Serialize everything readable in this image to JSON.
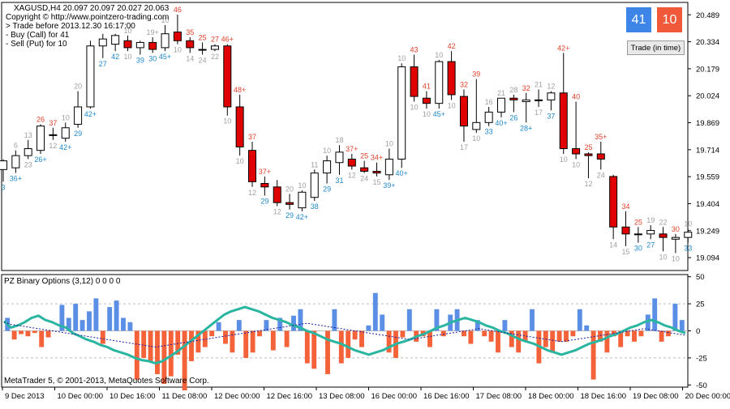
{
  "header": {
    "symbol_line": "XAGUSD,H4  20.097 20.097 20.027 20.063",
    "copyright": "Copyright © http://www.pointzero-trading.com",
    "trade_before": "> Trade before 2013.12.30 16:17:00",
    "buy_line": "- Buy (Call) for 41",
    "sell_line": "- Sell (Put) for 10"
  },
  "buttons": {
    "call_value": "41",
    "put_value": "10",
    "trade_label": "Trade (in time)",
    "call_color": "#3d86e8",
    "put_color": "#f05a3a"
  },
  "indicator": {
    "title": "PZ Binary Options (3,12) 0 0 0 0",
    "footer": "MetaTrader 5, © 2001-2013, MetaQuotes Software Corp."
  },
  "colors": {
    "bull_body": "#ffffff",
    "bear_body": "#e00000",
    "wick": "#000000",
    "label_red": "#e0402a",
    "label_blue": "#1e88c8",
    "label_gray": "#a0a0a0",
    "hist_pos": "#5b8fe6",
    "hist_neg": "#f4623a",
    "teal_line": "#2ab5a0",
    "signal_line": "#1a1aa0"
  },
  "chart_data": [
    {
      "type": "candlestick",
      "symbol": "XAGUSD",
      "timeframe": "H4",
      "ylim": [
        19.02,
        20.56
      ],
      "y_ticks": [
        "20.489",
        "20.334",
        "20.179",
        "20.024",
        "19.869",
        "19.714",
        "19.559",
        "19.404",
        "19.249",
        "19.094"
      ],
      "y_tick_values": [
        20.489,
        20.334,
        20.179,
        20.024,
        19.869,
        19.714,
        19.559,
        19.404,
        19.249,
        19.094
      ],
      "x_ticks": [
        "9 Dec 2013",
        "10 Dec 00:00",
        "10 Dec 16:00",
        "11 Dec 08:00",
        "12 Dec 00:00",
        "12 Dec 16:00",
        "13 Dec 08:00",
        "16 Dec 00:00",
        "16 Dec 16:00",
        "17 Dec 08:00",
        "18 Dec 00:00",
        "18 Dec 16:00",
        "19 Dec 08:00",
        "20 Dec 00:00"
      ],
      "candles": [
        {
          "o": 19.6,
          "h": 19.66,
          "l": 19.53,
          "c": 19.65,
          "ah": "",
          "ahc": "gray",
          "bl": "3",
          "blc": "blue"
        },
        {
          "o": 19.61,
          "h": 19.71,
          "l": 19.58,
          "c": 19.68,
          "ah": "6",
          "ahc": "gray",
          "bl": "36+",
          "blc": "blue"
        },
        {
          "o": 19.68,
          "h": 19.77,
          "l": 19.66,
          "c": 19.72,
          "ah": "13",
          "ahc": "gray",
          "bl": "23",
          "blc": "gray"
        },
        {
          "o": 19.71,
          "h": 19.86,
          "l": 19.69,
          "c": 19.85,
          "ah": "26",
          "ahc": "red",
          "bl": "26+",
          "blc": "blue"
        },
        {
          "o": 19.8,
          "h": 19.84,
          "l": 19.77,
          "c": 19.8,
          "ah": "37",
          "ahc": "red",
          "bl": "12",
          "blc": "gray"
        },
        {
          "o": 19.78,
          "h": 19.87,
          "l": 19.76,
          "c": 19.84,
          "ah": "10",
          "ahc": "gray",
          "bl": "42+",
          "blc": "blue"
        },
        {
          "o": 19.86,
          "h": 20.05,
          "l": 19.84,
          "c": 19.96,
          "ah": "20",
          "ahc": "gray",
          "bl": "29",
          "blc": "blue"
        },
        {
          "o": 19.96,
          "h": 20.34,
          "l": 19.95,
          "c": 20.31,
          "ah": "",
          "ahc": "gray",
          "bl": "42+",
          "blc": "blue"
        },
        {
          "o": 20.31,
          "h": 20.38,
          "l": 20.24,
          "c": 20.35,
          "ah": "",
          "ahc": "gray",
          "bl": "27",
          "blc": "blue"
        },
        {
          "o": 20.32,
          "h": 20.38,
          "l": 20.28,
          "c": 20.37,
          "ah": "",
          "ahc": "gray",
          "bl": "42",
          "blc": "blue"
        },
        {
          "o": 20.34,
          "h": 20.37,
          "l": 20.28,
          "c": 20.3,
          "ah": "10",
          "ahc": "gray",
          "bl": "10",
          "blc": "gray"
        },
        {
          "o": 20.3,
          "h": 20.34,
          "l": 20.26,
          "c": 20.33,
          "ah": "",
          "ahc": "gray",
          "bl": "39",
          "blc": "blue"
        },
        {
          "o": 20.33,
          "h": 20.36,
          "l": 20.27,
          "c": 20.29,
          "ah": "19+",
          "ahc": "gray",
          "bl": "30",
          "blc": "blue"
        },
        {
          "o": 20.3,
          "h": 20.43,
          "l": 20.28,
          "c": 20.38,
          "ah": "10",
          "ahc": "gray",
          "bl": "45+",
          "blc": "blue"
        },
        {
          "o": 20.39,
          "h": 20.49,
          "l": 20.32,
          "c": 20.34,
          "ah": "46",
          "ahc": "red",
          "bl": "10",
          "blc": "gray"
        },
        {
          "o": 20.34,
          "h": 20.36,
          "l": 20.27,
          "c": 20.3,
          "ah": "35",
          "ahc": "red",
          "bl": "14",
          "blc": "gray"
        },
        {
          "o": 20.29,
          "h": 20.33,
          "l": 20.26,
          "c": 20.29,
          "ah": "25",
          "ahc": "red",
          "bl": "24",
          "blc": "gray"
        },
        {
          "o": 20.29,
          "h": 20.32,
          "l": 20.28,
          "c": 20.31,
          "ah": "27",
          "ahc": "red",
          "bl": "22",
          "blc": "gray"
        },
        {
          "o": 20.31,
          "h": 20.32,
          "l": 19.91,
          "c": 19.96,
          "ah": "46+",
          "ahc": "red",
          "bl": "10",
          "blc": "gray"
        },
        {
          "o": 19.96,
          "h": 20.03,
          "l": 19.68,
          "c": 19.73,
          "ah": "48+",
          "ahc": "red",
          "bl": "10",
          "blc": "gray"
        },
        {
          "o": 19.71,
          "h": 19.76,
          "l": 19.5,
          "c": 19.53,
          "ah": "37",
          "ahc": "red",
          "bl": "12",
          "blc": "gray"
        },
        {
          "o": 19.52,
          "h": 19.56,
          "l": 19.45,
          "c": 19.5,
          "ah": "37+",
          "ahc": "red",
          "bl": "29",
          "blc": "blue"
        },
        {
          "o": 19.5,
          "h": 19.54,
          "l": 19.39,
          "c": 19.41,
          "ah": "",
          "ahc": "gray",
          "bl": "12",
          "blc": "gray"
        },
        {
          "o": 19.41,
          "h": 19.46,
          "l": 19.37,
          "c": 19.4,
          "ah": "20",
          "ahc": "gray",
          "bl": "29",
          "blc": "blue"
        },
        {
          "o": 19.38,
          "h": 19.48,
          "l": 19.36,
          "c": 19.47,
          "ah": "10",
          "ahc": "gray",
          "bl": "42+",
          "blc": "blue"
        },
        {
          "o": 19.44,
          "h": 19.6,
          "l": 19.42,
          "c": 19.58,
          "ah": "11",
          "ahc": "gray",
          "bl": "38",
          "blc": "blue"
        },
        {
          "o": 19.58,
          "h": 19.68,
          "l": 19.52,
          "c": 19.65,
          "ah": "10",
          "ahc": "gray",
          "bl": "29",
          "blc": "blue"
        },
        {
          "o": 19.64,
          "h": 19.74,
          "l": 19.57,
          "c": 19.7,
          "ah": "18",
          "ahc": "gray",
          "bl": "31",
          "blc": "blue"
        },
        {
          "o": 19.66,
          "h": 19.69,
          "l": 19.6,
          "c": 19.62,
          "ah": "37+",
          "ahc": "red",
          "bl": "12",
          "blc": "gray"
        },
        {
          "o": 19.61,
          "h": 19.65,
          "l": 19.58,
          "c": 19.59,
          "ah": "25",
          "ahc": "red",
          "bl": "24",
          "blc": "gray"
        },
        {
          "o": 19.59,
          "h": 19.64,
          "l": 19.56,
          "c": 19.58,
          "ah": "34+",
          "ahc": "red",
          "bl": "15",
          "blc": "gray"
        },
        {
          "o": 19.57,
          "h": 19.72,
          "l": 19.54,
          "c": 19.66,
          "ah": "10",
          "ahc": "gray",
          "bl": "39+",
          "blc": "blue"
        },
        {
          "o": 19.66,
          "h": 20.21,
          "l": 19.61,
          "c": 20.19,
          "ah": "10",
          "ahc": "gray",
          "bl": "40+",
          "blc": "blue"
        },
        {
          "o": 20.19,
          "h": 20.26,
          "l": 19.99,
          "c": 20.02,
          "ah": "43",
          "ahc": "red",
          "bl": "10",
          "blc": "gray"
        },
        {
          "o": 20.01,
          "h": 20.05,
          "l": 19.95,
          "c": 19.98,
          "ah": "41",
          "ahc": "red",
          "bl": "10",
          "blc": "gray"
        },
        {
          "o": 19.98,
          "h": 20.23,
          "l": 19.95,
          "c": 20.22,
          "ah": "10",
          "ahc": "gray",
          "bl": "45+",
          "blc": "blue"
        },
        {
          "o": 20.22,
          "h": 20.28,
          "l": 20.0,
          "c": 20.03,
          "ah": "42",
          "ahc": "red",
          "bl": "10",
          "blc": "gray"
        },
        {
          "o": 20.02,
          "h": 20.06,
          "l": 19.76,
          "c": 19.85,
          "ah": "32",
          "ahc": "red",
          "bl": "17",
          "blc": "gray"
        },
        {
          "o": 19.83,
          "h": 20.12,
          "l": 19.81,
          "c": 19.87,
          "ah": "39",
          "ahc": "red",
          "bl": "10",
          "blc": "gray"
        },
        {
          "o": 19.87,
          "h": 19.96,
          "l": 19.85,
          "c": 19.93,
          "ah": "16",
          "ahc": "gray",
          "bl": "33",
          "blc": "blue"
        },
        {
          "o": 19.93,
          "h": 20.01,
          "l": 19.9,
          "c": 20.01,
          "ah": "21",
          "ahc": "gray",
          "bl": "40+",
          "blc": "blue"
        },
        {
          "o": 20.01,
          "h": 20.03,
          "l": 19.93,
          "c": 20.0,
          "ah": "28",
          "ahc": "gray",
          "bl": "26",
          "blc": "blue"
        },
        {
          "o": 19.99,
          "h": 20.04,
          "l": 19.87,
          "c": 20.0,
          "ah": "32",
          "ahc": "red",
          "bl": "28+",
          "blc": "blue"
        },
        {
          "o": 20.0,
          "h": 20.06,
          "l": 19.96,
          "c": 20.0,
          "ah": "21",
          "ahc": "gray",
          "bl": "17",
          "blc": "gray"
        },
        {
          "o": 20.0,
          "h": 20.05,
          "l": 19.94,
          "c": 20.04,
          "ah": "12",
          "ahc": "gray",
          "bl": "37",
          "blc": "blue"
        },
        {
          "o": 20.04,
          "h": 20.27,
          "l": 19.69,
          "c": 19.72,
          "ah": "42+",
          "ahc": "red",
          "bl": "10",
          "blc": "gray"
        },
        {
          "o": 19.72,
          "h": 19.99,
          "l": 19.66,
          "c": 19.69,
          "ah": "40",
          "ahc": "red",
          "bl": "10",
          "blc": "gray"
        },
        {
          "o": 19.69,
          "h": 19.7,
          "l": 19.55,
          "c": 19.68,
          "ah": "25",
          "ahc": "red",
          "bl": "12",
          "blc": "gray"
        },
        {
          "o": 19.69,
          "h": 19.76,
          "l": 19.6,
          "c": 19.66,
          "ah": "35+",
          "ahc": "red",
          "bl": "24",
          "blc": "gray"
        },
        {
          "o": 19.56,
          "h": 19.57,
          "l": 19.2,
          "c": 19.27,
          "ah": "",
          "ahc": "gray",
          "bl": "14",
          "blc": "gray"
        },
        {
          "o": 19.27,
          "h": 19.36,
          "l": 19.16,
          "c": 19.23,
          "ah": "34",
          "ahc": "red",
          "bl": "15",
          "blc": "gray"
        },
        {
          "o": 19.23,
          "h": 19.27,
          "l": 19.18,
          "c": 19.23,
          "ah": "25",
          "ahc": "red",
          "bl": "30",
          "blc": "blue"
        },
        {
          "o": 19.23,
          "h": 19.28,
          "l": 19.2,
          "c": 19.25,
          "ah": "19",
          "ahc": "gray",
          "bl": "27",
          "blc": "blue"
        },
        {
          "o": 19.23,
          "h": 19.27,
          "l": 19.13,
          "c": 19.21,
          "ah": "22",
          "ahc": "gray",
          "bl": "10",
          "blc": "gray"
        },
        {
          "o": 19.2,
          "h": 19.23,
          "l": 19.12,
          "c": 19.21,
          "ah": "30",
          "ahc": "red",
          "bl": "10",
          "blc": "gray"
        },
        {
          "o": 19.21,
          "h": 19.26,
          "l": 19.18,
          "c": 19.24,
          "ah": "10",
          "ahc": "gray",
          "bl": "33",
          "blc": "blue"
        }
      ]
    },
    {
      "type": "bar",
      "title": "PZ Binary Options (3,12) 0 0 0 0",
      "ylim": [
        -52,
        52
      ],
      "y_ticks": [
        "50",
        "25",
        "0",
        "-25",
        "-50"
      ],
      "y_tick_values": [
        50,
        25,
        0,
        -25,
        -50
      ],
      "series": [
        {
          "values": [
            12,
            -8,
            -3,
            -5,
            -2,
            -15,
            -6,
            0,
            24,
            12,
            25,
            10,
            18,
            30,
            -12,
            22,
            28,
            12,
            8,
            -45,
            -25,
            -28,
            -40,
            -49,
            -42,
            -22,
            -55,
            -28,
            -20,
            -15,
            -5,
            8,
            -12,
            -20,
            10,
            -25,
            -20,
            -5,
            10,
            -18,
            12,
            -15,
            14,
            20,
            -30,
            -35,
            0,
            -40,
            20,
            -30,
            -25,
            -8,
            -15,
            5,
            35,
            15,
            -20,
            -25,
            -6,
            20,
            -10,
            -5,
            -15,
            20,
            -5,
            15,
            20,
            -5,
            -12,
            10,
            -5,
            -10,
            -20,
            10,
            -15,
            -20,
            -10,
            20,
            -30,
            -15,
            -20,
            -10,
            -10,
            -5,
            20,
            5,
            -45,
            -10,
            -20,
            -5,
            -15,
            -5,
            -10,
            -5,
            15,
            30,
            -10,
            -5,
            25,
            10
          ]
        },
        {
          "values": [
            9,
            3,
            5,
            8,
            12,
            14,
            10,
            8,
            5,
            3,
            -2,
            -5,
            -8,
            -10,
            -13,
            -15,
            -18,
            -20,
            -22,
            -25,
            -27,
            -28,
            -30,
            -28,
            -24,
            -20,
            -15,
            -10,
            -5,
            0,
            5,
            10,
            15,
            18,
            20,
            22,
            20,
            18,
            15,
            12,
            10,
            8,
            5,
            3,
            0,
            -2,
            -5,
            -8,
            -10,
            -12,
            -15,
            -18,
            -20,
            -22,
            -20,
            -18,
            -15,
            -12,
            -10,
            -8,
            -5,
            -3,
            0,
            3,
            5,
            8,
            10,
            12,
            10,
            8,
            5,
            3,
            0,
            -2,
            -5,
            -8,
            -10,
            -12,
            -15,
            -18,
            -20,
            -22,
            -20,
            -18,
            -15,
            -12,
            -10,
            -8,
            -5,
            -3,
            0,
            3,
            5,
            8,
            10,
            8,
            5,
            3,
            0,
            -2
          ]
        },
        {
          "values": [
            8,
            6,
            5,
            4,
            3,
            2,
            1,
            0,
            -1,
            -2,
            -3,
            -4,
            -5,
            -6,
            -7,
            -8,
            -9,
            -10,
            -11,
            -12,
            -13,
            -14,
            -15,
            -14,
            -13,
            -12,
            -11,
            -10,
            -9,
            -8,
            -7,
            -6,
            -5,
            -4,
            -3,
            -2,
            -1,
            0,
            1,
            2,
            3,
            4,
            5,
            6,
            7,
            6,
            5,
            4,
            3,
            2,
            1,
            0,
            -1,
            -2,
            -3,
            -4,
            -5,
            -6,
            -7,
            -8,
            -7,
            -6,
            -5,
            -4,
            -3,
            -2,
            -1,
            0,
            1,
            2,
            1,
            0,
            -1,
            -2,
            -3,
            -4,
            -5,
            -6,
            -7,
            -8,
            -9,
            -10,
            -9,
            -8,
            -7,
            -6,
            -5,
            -4,
            -3,
            -2,
            -1,
            0,
            1,
            2,
            1,
            0,
            -1,
            -2,
            -3,
            -4
          ]
        }
      ]
    }
  ]
}
